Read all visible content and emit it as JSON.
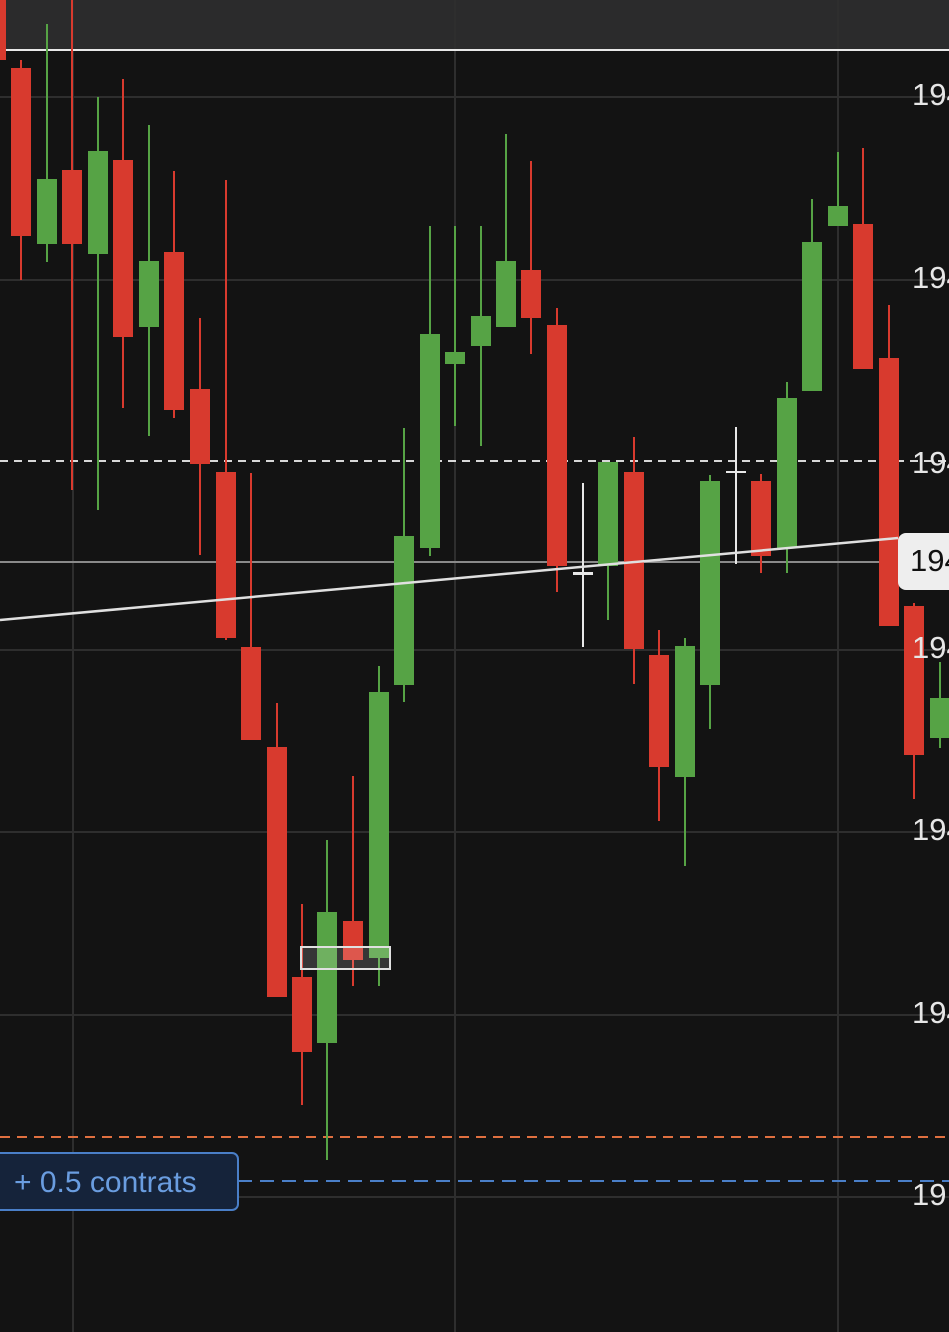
{
  "price_axis": {
    "labels": [
      "194",
      "194",
      "194",
      "194",
      "194",
      "194",
      "19"
    ]
  },
  "current_price_label": "194",
  "order_label": "+ 0.5 contrats"
}
